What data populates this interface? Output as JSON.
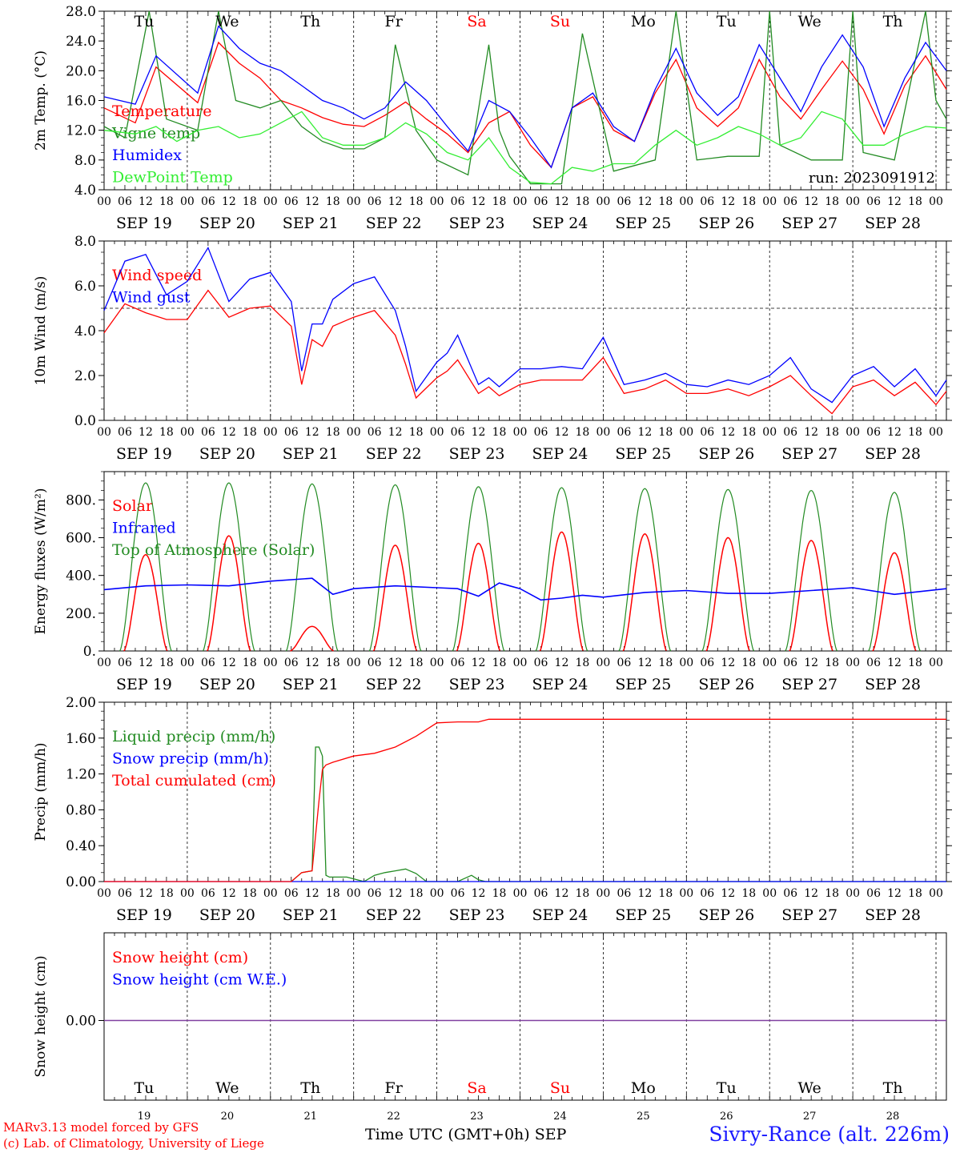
{
  "chart_data": [
    {
      "type": "line",
      "ylabel": "2m Temp. (°C)",
      "ylim": [
        4,
        28
      ],
      "yticks": [
        "4.0",
        "8.0",
        "12.0",
        "16.0",
        "20.0",
        "24.0",
        "28.0"
      ],
      "run_label": "run: 2023091912",
      "legend_placement": "left",
      "grid": "dashed vertical lines at midnight",
      "series": [
        {
          "name": "Temperature",
          "color": "#ff0000",
          "x": [
            0,
            9,
            15,
            27,
            33,
            39,
            45,
            51,
            57,
            63,
            69,
            75,
            81,
            87,
            93,
            99,
            105,
            111,
            117,
            123,
            129,
            135,
            141,
            147,
            153,
            159,
            165,
            171,
            177,
            183,
            189,
            195,
            201,
            207,
            213,
            219,
            225,
            231,
            237,
            243
          ],
          "y": [
            15,
            13,
            20.5,
            15.7,
            23.8,
            21,
            19,
            16,
            15,
            13.7,
            12.8,
            12.5,
            14,
            15.8,
            13.5,
            11.5,
            9,
            13,
            14.5,
            10,
            7,
            15,
            16.5,
            12,
            10.5,
            17,
            21.5,
            15,
            12.5,
            15,
            21.5,
            16.5,
            13.5,
            17.5,
            21.3,
            17.5,
            11.5,
            18,
            22,
            17.5
          ]
        },
        {
          "name": "Vigne temp",
          "color": "#228b22",
          "x": [
            0,
            6,
            13,
            18,
            27,
            33,
            38,
            45,
            51,
            57,
            63,
            69,
            75,
            81,
            84,
            90,
            96,
            105,
            111,
            114,
            117,
            123,
            132,
            138,
            147,
            159,
            165,
            171,
            180,
            189,
            192,
            195,
            204,
            213,
            216,
            219,
            228,
            237,
            240,
            243
          ],
          "y": [
            12.5,
            11,
            28,
            13.5,
            12,
            28,
            16,
            15,
            16,
            12.5,
            10.5,
            9.5,
            9.5,
            11,
            23.5,
            12,
            8,
            6,
            23.5,
            12,
            8.5,
            4.8,
            4.8,
            25,
            6.5,
            8,
            28,
            8,
            8.5,
            8.5,
            28,
            10,
            8,
            8,
            28,
            9,
            8,
            28,
            16,
            13.5
          ]
        },
        {
          "name": "Humidex",
          "color": "#0000ff",
          "x": [
            0,
            9,
            15,
            27,
            33,
            39,
            45,
            51,
            57,
            63,
            69,
            75,
            81,
            87,
            93,
            99,
            105,
            111,
            117,
            123,
            129,
            135,
            141,
            147,
            153,
            159,
            165,
            171,
            177,
            183,
            189,
            195,
            201,
            207,
            213,
            219,
            225,
            231,
            237,
            243
          ],
          "y": [
            16.5,
            15.5,
            22,
            17,
            26,
            23,
            21,
            20,
            18,
            16,
            15,
            13.5,
            15,
            18.5,
            16,
            12.5,
            9.2,
            16,
            14.5,
            11,
            7,
            15,
            17,
            12.5,
            10.5,
            17.5,
            23,
            17,
            14,
            16.5,
            23.5,
            19,
            14.5,
            20.5,
            24.8,
            20.5,
            12.5,
            19,
            23.8,
            20
          ]
        },
        {
          "name": "DewPoint Temp",
          "color": "#33ee33",
          "x": [
            0,
            9,
            15,
            21,
            27,
            33,
            39,
            45,
            51,
            57,
            63,
            69,
            75,
            81,
            87,
            93,
            99,
            105,
            111,
            117,
            123,
            129,
            135,
            141,
            147,
            153,
            159,
            165,
            171,
            177,
            183,
            189,
            195,
            201,
            207,
            213,
            219,
            225,
            231,
            237,
            243
          ],
          "y": [
            12,
            11.5,
            12.5,
            10.5,
            12,
            12.5,
            11,
            11.5,
            13,
            14.5,
            11,
            10,
            10,
            11,
            13,
            11.5,
            9,
            8,
            11,
            7,
            5,
            4.8,
            7,
            6.5,
            7.5,
            7.5,
            10,
            12,
            10,
            11,
            12.5,
            11.5,
            10,
            11,
            14.5,
            13.5,
            10,
            10,
            11.5,
            12.5,
            12.3
          ]
        }
      ]
    },
    {
      "type": "line",
      "ylabel": "10m Wind (m/s)",
      "ylim": [
        0,
        8
      ],
      "yticks": [
        "0.0",
        "2.0",
        "4.0",
        "6.0",
        "8.0"
      ],
      "reference_line": 5,
      "series": [
        {
          "name": "Wind speed",
          "color": "#ff0000",
          "x": [
            0,
            6,
            12,
            18,
            24,
            30,
            36,
            42,
            48,
            54,
            57,
            60,
            63,
            66,
            72,
            78,
            84,
            87,
            90,
            96,
            99,
            102,
            108,
            111,
            114,
            120,
            126,
            132,
            138,
            144,
            150,
            156,
            162,
            168,
            174,
            180,
            186,
            192,
            198,
            204,
            210,
            216,
            222,
            228,
            234,
            240,
            243
          ],
          "y": [
            3.9,
            5.2,
            4.8,
            4.5,
            4.5,
            5.8,
            4.6,
            5,
            5.1,
            4.2,
            1.6,
            3.6,
            3.3,
            4.2,
            4.6,
            4.9,
            3.8,
            2.5,
            1,
            1.9,
            2.2,
            2.7,
            1.2,
            1.5,
            1.1,
            1.6,
            1.8,
            1.8,
            1.8,
            2.8,
            1.2,
            1.4,
            1.8,
            1.2,
            1.2,
            1.4,
            1.1,
            1.5,
            2,
            1.1,
            0.3,
            1.5,
            1.8,
            1.1,
            1.7,
            0.7,
            1.3
          ]
        },
        {
          "name": "Wind gust",
          "color": "#0000ff",
          "x": [
            0,
            6,
            12,
            18,
            24,
            30,
            36,
            42,
            48,
            54,
            57,
            60,
            63,
            66,
            72,
            78,
            84,
            87,
            90,
            96,
            99,
            102,
            108,
            111,
            114,
            120,
            126,
            132,
            138,
            144,
            150,
            156,
            162,
            168,
            174,
            180,
            186,
            192,
            198,
            204,
            210,
            216,
            222,
            228,
            234,
            240,
            243
          ],
          "y": [
            4.9,
            7.1,
            7.4,
            5.6,
            6.2,
            7.7,
            5.3,
            6.3,
            6.6,
            5.3,
            2.2,
            4.3,
            4.3,
            5.4,
            6.1,
            6.4,
            4.9,
            3.3,
            1.3,
            2.6,
            3,
            3.8,
            1.6,
            1.9,
            1.5,
            2.3,
            2.3,
            2.4,
            2.3,
            3.7,
            1.6,
            1.8,
            2.1,
            1.6,
            1.5,
            1.8,
            1.6,
            2,
            2.8,
            1.4,
            0.8,
            2,
            2.4,
            1.5,
            2.3,
            1.1,
            1.8
          ]
        }
      ]
    },
    {
      "type": "line",
      "ylabel": "Energy fluxes (W/m²)",
      "ylim": [
        0,
        950
      ],
      "yticks": [
        "0.",
        "200.",
        "400.",
        "600.",
        "800."
      ],
      "series": [
        {
          "name": "Solar",
          "color": "#ff0000",
          "peaks": [
            510,
            610,
            130,
            560,
            570,
            630,
            620,
            600,
            585,
            520
          ]
        },
        {
          "name": "Infrared",
          "color": "#0000ff",
          "x": [
            0,
            12,
            24,
            36,
            48,
            60,
            66,
            72,
            84,
            96,
            102,
            108,
            114,
            120,
            126,
            132,
            138,
            144,
            156,
            168,
            180,
            192,
            204,
            216,
            228,
            243
          ],
          "y": [
            325,
            345,
            350,
            345,
            370,
            385,
            300,
            330,
            345,
            335,
            330,
            290,
            360,
            330,
            270,
            280,
            295,
            285,
            310,
            320,
            305,
            305,
            320,
            335,
            300,
            330
          ]
        },
        {
          "name": "Top of Atmosphere (Solar)",
          "color": "#228b22",
          "peaks": [
            890,
            890,
            885,
            880,
            870,
            865,
            860,
            855,
            850,
            840
          ]
        }
      ]
    },
    {
      "type": "line",
      "ylabel": "Precip (mm/h)",
      "ylim": [
        0,
        2
      ],
      "yticks": [
        "0.00",
        "0.40",
        "0.80",
        "1.20",
        "1.60",
        "2.00"
      ],
      "series": [
        {
          "name": "Liquid precip (mm/h)",
          "color": "#228b22",
          "x": [
            54,
            57,
            60,
            61,
            62,
            63,
            64,
            65,
            70,
            75,
            78,
            81,
            84,
            87,
            90,
            93,
            96,
            102,
            106,
            108,
            110,
            243
          ],
          "y": [
            0,
            0.1,
            0.12,
            1.5,
            1.5,
            1.4,
            0.07,
            0.05,
            0.05,
            0,
            0.07,
            0.1,
            0.12,
            0.14,
            0.09,
            0,
            0,
            0,
            0.07,
            0.02,
            0,
            0
          ]
        },
        {
          "name": "Snow precip (mm/h)",
          "color": "#0000ff",
          "x": [
            0,
            243
          ],
          "y": [
            0,
            0
          ]
        },
        {
          "name": "Total cumulated (cm)",
          "color": "#ff0000",
          "x": [
            0,
            54,
            57,
            60,
            62,
            63,
            64,
            66,
            72,
            78,
            84,
            90,
            96,
            102,
            108,
            111,
            243
          ],
          "y": [
            0,
            0,
            0.1,
            0.12,
            0.9,
            1.25,
            1.3,
            1.33,
            1.4,
            1.43,
            1.5,
            1.62,
            1.77,
            1.78,
            1.78,
            1.81,
            1.81
          ]
        }
      ]
    },
    {
      "type": "line",
      "ylabel": "Snow height (cm)",
      "yticks": [
        "0.00"
      ],
      "series": [
        {
          "name": "Snow height (cm)",
          "color": "#ff0000",
          "x": [
            0,
            243
          ],
          "y": [
            0,
            0
          ]
        },
        {
          "name": "Snow height (cm W.E.)",
          "color": "#0000ff",
          "x": [
            0,
            243
          ],
          "y": [
            0,
            0
          ]
        }
      ]
    }
  ],
  "xaxis": {
    "hour_labels": [
      "00",
      "06",
      "12",
      "18"
    ],
    "date_labels": [
      "SEP 19",
      "SEP 20",
      "SEP 21",
      "SEP 22",
      "SEP 23",
      "SEP 24",
      "SEP 25",
      "SEP 26",
      "SEP 27",
      "SEP 28"
    ],
    "day_names": [
      "Tu",
      "We",
      "Th",
      "Fr",
      "Sa",
      "Su",
      "Mo",
      "Tu",
      "We",
      "Th"
    ],
    "weekend_color": "#ff0000",
    "day_numbers": [
      "19",
      "20",
      "21",
      "22",
      "23",
      "24",
      "25",
      "26",
      "27",
      "28"
    ],
    "end_label": "00",
    "title": "Time UTC (GMT+0h)",
    "month": "SEP"
  },
  "footer": {
    "model_line": "MARv3.13 model forced by GFS",
    "credit_line": "(c) Lab. of Climatology, University of Liege",
    "station": "Sivry-Rance (alt. 226m)"
  }
}
